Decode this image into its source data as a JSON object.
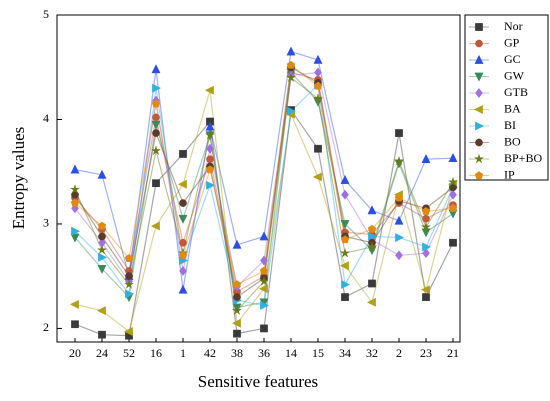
{
  "chart_data": {
    "type": "line",
    "x_label": "Sensitive features",
    "y_label": "Entropy values",
    "categories": [
      "20",
      "24",
      "52",
      "16",
      "1",
      "42",
      "38",
      "36",
      "14",
      "15",
      "34",
      "32",
      "2",
      "23",
      "21"
    ],
    "ylim": [
      1.87,
      5
    ],
    "yticks": [
      2,
      3,
      4,
      5
    ],
    "legend": "upper right",
    "series": [
      {
        "name": "Nor",
        "color": "#3a3a3a",
        "marker": "square",
        "values": [
          2.04,
          1.94,
          1.93,
          3.39,
          3.67,
          3.98,
          1.95,
          2.0,
          4.09,
          3.72,
          2.3,
          2.43,
          3.87,
          2.3,
          2.82
        ]
      },
      {
        "name": "GP",
        "color": "#c0583c",
        "marker": "circle",
        "values": [
          3.25,
          2.95,
          2.55,
          4.02,
          2.82,
          3.62,
          2.35,
          2.5,
          4.45,
          4.38,
          2.92,
          2.9,
          3.2,
          3.05,
          3.18
        ]
      },
      {
        "name": "GC",
        "color": "#2d4fe0",
        "marker": "triangle-up",
        "values": [
          3.52,
          3.47,
          2.5,
          4.48,
          2.37,
          3.93,
          2.8,
          2.88,
          4.65,
          4.57,
          3.42,
          3.13,
          3.03,
          3.62,
          3.63
        ]
      },
      {
        "name": "GW",
        "color": "#3a8a5a",
        "marker": "triangle-down",
        "values": [
          2.87,
          2.57,
          2.3,
          3.95,
          3.05,
          3.85,
          2.2,
          2.25,
          4.45,
          4.17,
          3.0,
          2.75,
          3.58,
          2.92,
          3.1
        ]
      },
      {
        "name": "GTB",
        "color": "#a070e0",
        "marker": "diamond",
        "values": [
          3.15,
          2.82,
          2.45,
          4.18,
          2.55,
          3.72,
          2.4,
          2.65,
          4.42,
          4.45,
          3.28,
          2.85,
          2.7,
          2.72,
          3.28
        ]
      },
      {
        "name": "BA",
        "color": "#b0a018",
        "marker": "triangle-left",
        "values": [
          2.23,
          2.17,
          1.97,
          2.98,
          3.38,
          4.28,
          2.05,
          2.38,
          4.05,
          3.45,
          2.6,
          2.25,
          3.28,
          2.37,
          3.38
        ]
      },
      {
        "name": "BI",
        "color": "#30b0e0",
        "marker": "triangle-right",
        "values": [
          2.93,
          2.68,
          2.33,
          4.3,
          2.65,
          3.37,
          2.27,
          2.22,
          4.08,
          4.33,
          2.42,
          2.88,
          2.87,
          2.78,
          3.35
        ]
      },
      {
        "name": "BO",
        "color": "#5a3a28",
        "marker": "circle",
        "values": [
          3.28,
          2.88,
          2.5,
          3.87,
          3.2,
          3.55,
          2.3,
          2.48,
          4.5,
          4.35,
          2.88,
          2.82,
          3.22,
          3.15,
          3.35
        ]
      },
      {
        "name": "BP+BO",
        "color": "#6a7a18",
        "marker": "star",
        "values": [
          3.33,
          2.75,
          2.42,
          3.7,
          2.72,
          3.85,
          2.17,
          2.45,
          4.4,
          4.2,
          2.72,
          2.78,
          3.6,
          2.97,
          3.4
        ]
      },
      {
        "name": "IP",
        "color": "#e08a10",
        "marker": "pentagon",
        "values": [
          3.2,
          2.98,
          2.67,
          4.15,
          2.7,
          3.52,
          2.42,
          2.55,
          4.52,
          4.32,
          2.85,
          2.95,
          3.25,
          3.12,
          3.15
        ]
      }
    ]
  }
}
